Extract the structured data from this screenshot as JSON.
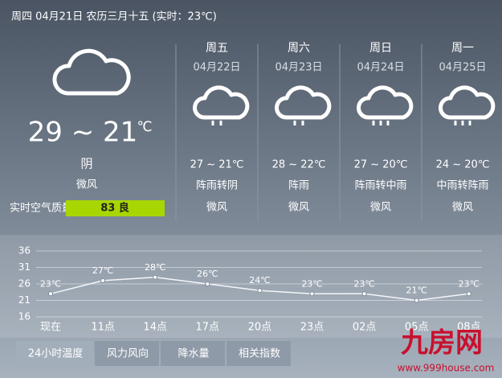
{
  "header": {
    "text": "周四 04月21日 农历三月十五 (实时：23℃)"
  },
  "today": {
    "temp": "29 ~ 21",
    "unit": "℃",
    "condition": "阴",
    "wind": "微风",
    "air_label": "实时空气质量:",
    "air_value": "83 良"
  },
  "forecast": [
    {
      "day": "周五",
      "date": "04月22日",
      "temp": "27 ~ 21℃",
      "condition": "阵雨转阴",
      "wind": "微风"
    },
    {
      "day": "周六",
      "date": "04月23日",
      "temp": "28 ~ 22℃",
      "condition": "阵雨",
      "wind": "微风"
    },
    {
      "day": "周日",
      "date": "04月24日",
      "temp": "27 ~ 20℃",
      "condition": "阵雨转中雨",
      "wind": "微风"
    },
    {
      "day": "周一",
      "date": "04月25日",
      "temp": "24 ~ 20℃",
      "condition": "中雨转阵雨",
      "wind": "微风"
    }
  ],
  "chart_data": {
    "type": "line",
    "categories": [
      "现在",
      "11点",
      "14点",
      "17点",
      "20点",
      "23点",
      "02点",
      "05点",
      "08点"
    ],
    "values": [
      23,
      27,
      28,
      26,
      24,
      23,
      23,
      21,
      23
    ],
    "value_labels": [
      "23℃",
      "27℃",
      "28℃",
      "26℃",
      "24℃",
      "23℃",
      "23℃",
      "21℃",
      "23℃"
    ],
    "color": "#f4f6f8",
    "ylim": [
      16,
      36
    ],
    "yticks": [
      16,
      21,
      26,
      31,
      36
    ],
    "grid": true
  },
  "tabs": [
    "24小时温度",
    "风力风向",
    "降水量",
    "相关指数"
  ],
  "watermark": {
    "logo": "九房网",
    "url": "www.999house.com"
  }
}
